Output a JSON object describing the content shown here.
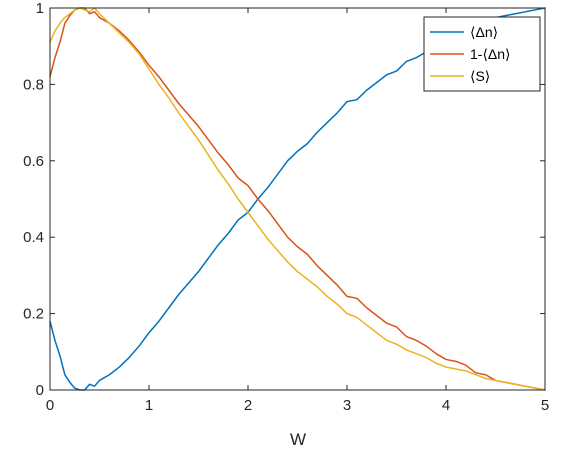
{
  "chart_data": {
    "type": "line",
    "title": "",
    "xlabel": "W",
    "ylabel": "",
    "xlim": [
      0,
      5
    ],
    "ylim": [
      0,
      1
    ],
    "xticks": [
      0,
      1,
      2,
      3,
      4,
      5
    ],
    "yticks": [
      0,
      0.2,
      0.4,
      0.6,
      0.8,
      1
    ],
    "xtick_labels": [
      "0",
      "1",
      "2",
      "3",
      "4",
      "5"
    ],
    "ytick_labels": [
      "0",
      "0.2",
      "0.4",
      "0.6",
      "0.8",
      "1"
    ],
    "grid": false,
    "legend_position": "top-right",
    "series": [
      {
        "name": "⟨Δn⟩",
        "color": "#0072BD",
        "x": [
          0,
          0.05,
          0.1,
          0.15,
          0.2,
          0.25,
          0.3,
          0.35,
          0.4,
          0.45,
          0.5,
          0.6,
          0.7,
          0.8,
          0.9,
          1.0,
          1.1,
          1.2,
          1.3,
          1.4,
          1.5,
          1.6,
          1.7,
          1.8,
          1.9,
          2.0,
          2.1,
          2.2,
          2.3,
          2.4,
          2.5,
          2.6,
          2.7,
          2.8,
          2.9,
          3.0,
          3.1,
          3.2,
          3.3,
          3.4,
          3.5,
          3.6,
          3.7,
          3.8,
          3.9,
          4.0,
          4.1,
          4.2,
          4.3,
          4.4,
          4.5,
          4.6,
          4.7,
          4.8,
          4.9,
          5.0
        ],
        "y": [
          0.18,
          0.13,
          0.09,
          0.04,
          0.02,
          0.005,
          0.0,
          0.0,
          0.015,
          0.01,
          0.025,
          0.04,
          0.06,
          0.085,
          0.115,
          0.15,
          0.18,
          0.215,
          0.25,
          0.28,
          0.31,
          0.345,
          0.38,
          0.41,
          0.445,
          0.465,
          0.5,
          0.53,
          0.565,
          0.6,
          0.625,
          0.645,
          0.675,
          0.7,
          0.725,
          0.755,
          0.76,
          0.785,
          0.805,
          0.825,
          0.835,
          0.86,
          0.87,
          0.885,
          0.905,
          0.92,
          0.925,
          0.935,
          0.955,
          0.96,
          0.975,
          0.98,
          0.985,
          0.99,
          0.995,
          1.0
        ]
      },
      {
        "name": "1-⟨Δn⟩",
        "color": "#D95319",
        "x": [
          0,
          0.05,
          0.1,
          0.15,
          0.2,
          0.25,
          0.3,
          0.35,
          0.4,
          0.45,
          0.5,
          0.6,
          0.7,
          0.8,
          0.9,
          1.0,
          1.1,
          1.2,
          1.3,
          1.4,
          1.5,
          1.6,
          1.7,
          1.8,
          1.9,
          2.0,
          2.1,
          2.2,
          2.3,
          2.4,
          2.5,
          2.6,
          2.7,
          2.8,
          2.9,
          3.0,
          3.1,
          3.2,
          3.3,
          3.4,
          3.5,
          3.6,
          3.7,
          3.8,
          3.9,
          4.0,
          4.1,
          4.2,
          4.3,
          4.4,
          4.5,
          4.6,
          4.7,
          4.8,
          4.9,
          5.0
        ],
        "y": [
          0.82,
          0.87,
          0.91,
          0.96,
          0.98,
          0.995,
          1.0,
          1.0,
          0.985,
          0.99,
          0.975,
          0.96,
          0.94,
          0.915,
          0.885,
          0.85,
          0.82,
          0.785,
          0.75,
          0.72,
          0.69,
          0.655,
          0.62,
          0.59,
          0.555,
          0.535,
          0.5,
          0.47,
          0.435,
          0.4,
          0.375,
          0.355,
          0.325,
          0.3,
          0.275,
          0.245,
          0.24,
          0.215,
          0.195,
          0.175,
          0.165,
          0.14,
          0.13,
          0.115,
          0.095,
          0.08,
          0.075,
          0.065,
          0.045,
          0.04,
          0.025,
          0.02,
          0.015,
          0.01,
          0.005,
          0.0
        ]
      },
      {
        "name": "⟨S⟩",
        "color": "#EDB120",
        "x": [
          0,
          0.05,
          0.1,
          0.15,
          0.2,
          0.25,
          0.3,
          0.35,
          0.4,
          0.45,
          0.5,
          0.6,
          0.7,
          0.8,
          0.9,
          1.0,
          1.1,
          1.2,
          1.3,
          1.4,
          1.5,
          1.6,
          1.7,
          1.8,
          1.9,
          2.0,
          2.1,
          2.2,
          2.3,
          2.4,
          2.5,
          2.6,
          2.7,
          2.8,
          2.9,
          3.0,
          3.1,
          3.2,
          3.3,
          3.4,
          3.5,
          3.6,
          3.7,
          3.8,
          3.9,
          4.0,
          4.1,
          4.2,
          4.3,
          4.4,
          4.5,
          4.6,
          4.7,
          4.8,
          4.9,
          5.0
        ],
        "y": [
          0.91,
          0.94,
          0.96,
          0.975,
          0.985,
          0.995,
          1.0,
          0.995,
          0.99,
          1.0,
          0.985,
          0.96,
          0.935,
          0.91,
          0.88,
          0.84,
          0.8,
          0.765,
          0.725,
          0.69,
          0.655,
          0.615,
          0.575,
          0.54,
          0.5,
          0.465,
          0.43,
          0.395,
          0.365,
          0.335,
          0.31,
          0.29,
          0.27,
          0.245,
          0.225,
          0.2,
          0.19,
          0.17,
          0.15,
          0.13,
          0.12,
          0.105,
          0.095,
          0.085,
          0.07,
          0.06,
          0.055,
          0.05,
          0.04,
          0.03,
          0.025,
          0.02,
          0.015,
          0.01,
          0.005,
          0.0
        ]
      }
    ]
  }
}
